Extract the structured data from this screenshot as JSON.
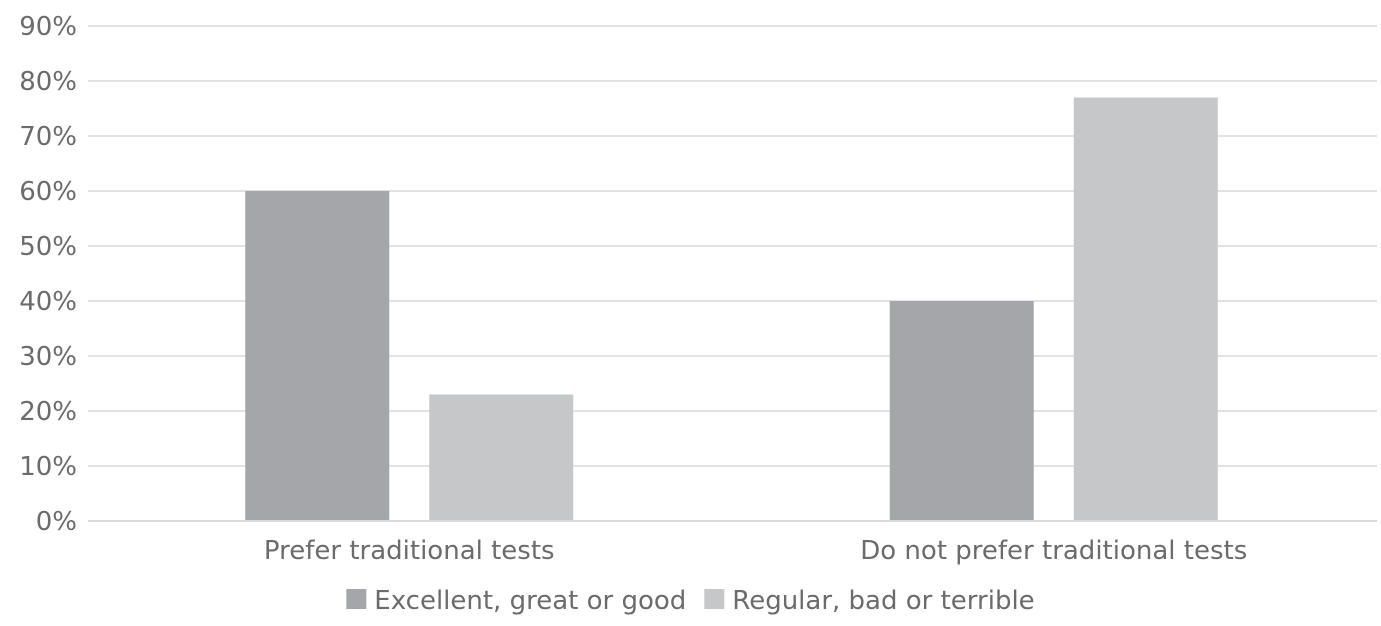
{
  "chart_data": {
    "type": "bar",
    "categories": [
      "Prefer traditional tests",
      "Do not prefer traditional tests"
    ],
    "series": [
      {
        "name": "Excellent, great or good",
        "values": [
          60,
          40
        ],
        "color": "#a5a6a9"
      },
      {
        "name": "Regular, bad or terrible",
        "values": [
          23,
          77
        ],
        "color": "#c6c7c9"
      }
    ],
    "yticks": [
      "0%",
      "10%",
      "20%",
      "30%",
      "40%",
      "50%",
      "60%",
      "70%",
      "80%",
      "90%"
    ],
    "ylim": [
      0,
      90
    ],
    "grid": true,
    "legend": "bottom",
    "title": "",
    "xlabel": "",
    "ylabel": ""
  }
}
